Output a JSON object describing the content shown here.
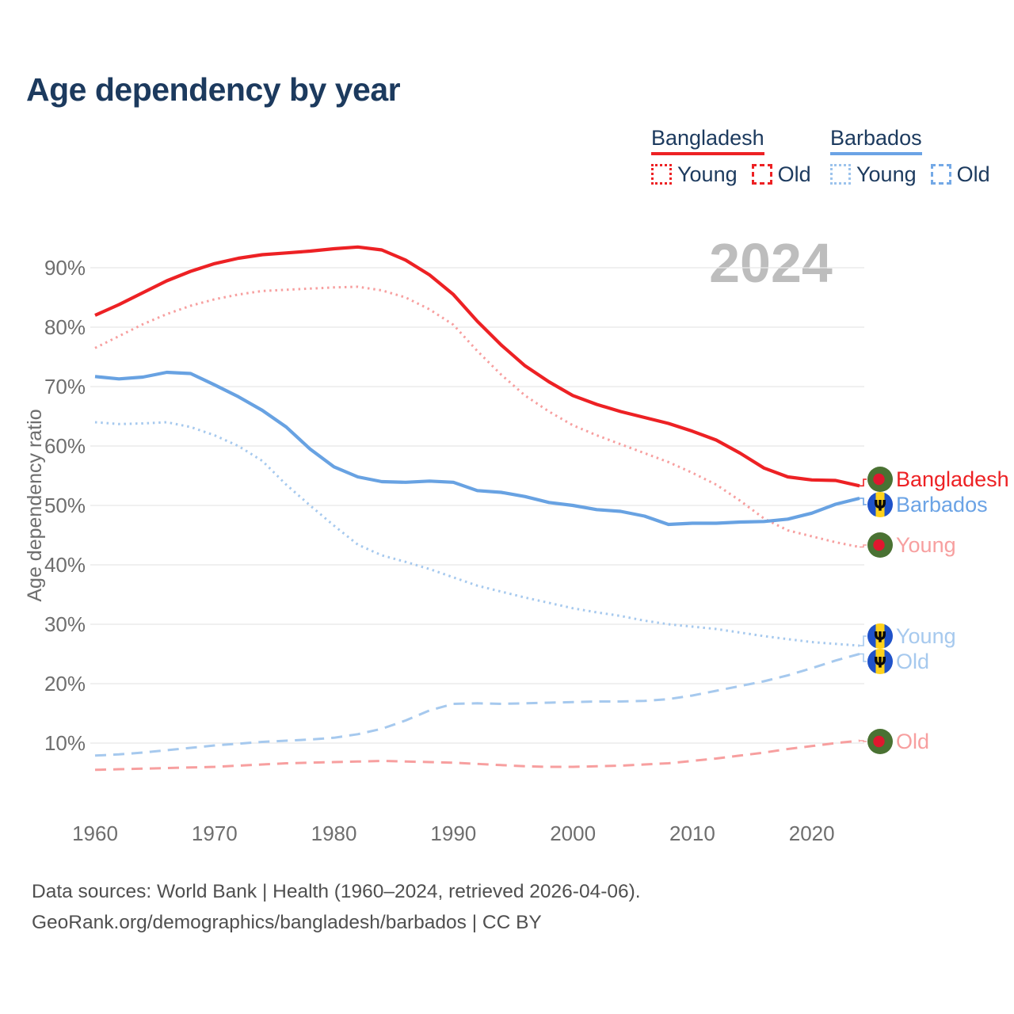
{
  "title": "Age dependency by year",
  "watermark": "2024",
  "icons": {
    "trident_glyph": "Ψ"
  },
  "legend": {
    "groups": [
      {
        "country": "Bangladesh",
        "color": "#ed2124",
        "items": [
          {
            "label": "Young",
            "style": "dotted",
            "color": "#ed2124"
          },
          {
            "label": "Old",
            "style": "dashed",
            "color": "#ed2124"
          }
        ]
      },
      {
        "country": "Barbados",
        "color": "#6ba3e5",
        "items": [
          {
            "label": "Young",
            "style": "dotted",
            "color": "#9cc3ec"
          },
          {
            "label": "Old",
            "style": "dashed",
            "color": "#74a9e6"
          }
        ]
      }
    ]
  },
  "chart_data": {
    "type": "line",
    "title": "Age dependency by year",
    "xlabel": "",
    "ylabel": "Age dependency ratio",
    "xlim": [
      1960,
      2024
    ],
    "ylim": [
      5,
      96
    ],
    "grid": true,
    "watermark": "2024",
    "x_ticks": [
      1960,
      1970,
      1980,
      1990,
      2000,
      2010,
      2020
    ],
    "y_ticks": [
      {
        "value": 90,
        "label": "90%"
      },
      {
        "value": 80,
        "label": "80%"
      },
      {
        "value": 70,
        "label": "70%"
      },
      {
        "value": 60,
        "label": "60%"
      },
      {
        "value": 50,
        "label": "50%"
      },
      {
        "value": 40,
        "label": "40%"
      },
      {
        "value": 30,
        "label": "30%"
      },
      {
        "value": 20,
        "label": "20%"
      },
      {
        "value": 10,
        "label": "10%"
      }
    ],
    "x": [
      1960,
      1962,
      1964,
      1966,
      1968,
      1970,
      1972,
      1974,
      1976,
      1978,
      1980,
      1982,
      1984,
      1986,
      1988,
      1990,
      1992,
      1994,
      1996,
      1998,
      2000,
      2002,
      2004,
      2006,
      2008,
      2010,
      2012,
      2014,
      2016,
      2018,
      2020,
      2022,
      2024
    ],
    "series": [
      {
        "id": "bangladesh-total",
        "name": "Bangladesh (total)",
        "country": "Bangladesh",
        "component": "total",
        "style": "solid",
        "color": "#ed2124",
        "values": [
          82,
          83.8,
          85.8,
          87.8,
          89.4,
          90.7,
          91.6,
          92.2,
          92.5,
          92.8,
          93.2,
          93.5,
          93,
          91.3,
          88.8,
          85.5,
          81,
          77,
          73.5,
          70.8,
          68.5,
          67,
          65.8,
          64.8,
          63.8,
          62.5,
          61,
          58.8,
          56.3,
          54.8,
          54.3,
          54.2,
          53.3
        ]
      },
      {
        "id": "bangladesh-young",
        "name": "Bangladesh (young)",
        "country": "Bangladesh",
        "component": "young",
        "style": "dotted",
        "color": "#f79f9f",
        "values": [
          76.5,
          78.5,
          80.5,
          82.2,
          83.6,
          84.7,
          85.5,
          86.1,
          86.3,
          86.5,
          86.7,
          86.8,
          86.2,
          85,
          83,
          80.4,
          76,
          72,
          68.5,
          65.8,
          63.5,
          61.8,
          60.3,
          58.8,
          57.3,
          55.5,
          53.5,
          50.8,
          47.8,
          45.8,
          44.8,
          43.8,
          43
        ]
      },
      {
        "id": "bangladesh-old",
        "name": "Bangladesh (old)",
        "country": "Bangladesh",
        "component": "old",
        "style": "dashed",
        "color": "#f79f9f",
        "values": [
          5.5,
          5.6,
          5.7,
          5.8,
          5.9,
          6,
          6.2,
          6.4,
          6.6,
          6.7,
          6.8,
          6.9,
          7,
          6.9,
          6.8,
          6.7,
          6.5,
          6.3,
          6.1,
          6,
          6,
          6.1,
          6.2,
          6.4,
          6.6,
          7,
          7.4,
          7.9,
          8.4,
          9,
          9.5,
          10,
          10.4
        ]
      },
      {
        "id": "barbados-total",
        "name": "Barbados (total)",
        "country": "Barbados",
        "component": "total",
        "style": "solid",
        "color": "#68a2e2",
        "values": [
          71.7,
          71.3,
          71.6,
          72.4,
          72.2,
          70.3,
          68.3,
          66,
          63.2,
          59.5,
          56.5,
          54.8,
          54,
          53.9,
          54.1,
          53.9,
          52.5,
          52.2,
          51.5,
          50.5,
          50,
          49.3,
          49,
          48.2,
          46.8,
          47,
          47,
          47.2,
          47.3,
          47.7,
          48.7,
          50.2,
          51.2
        ]
      },
      {
        "id": "barbados-young",
        "name": "Barbados (young)",
        "country": "Barbados",
        "component": "young",
        "style": "dotted",
        "color": "#a6c9ee",
        "values": [
          64,
          63.7,
          63.8,
          64,
          63.2,
          61.8,
          60,
          57.5,
          53.5,
          50,
          46.6,
          43.4,
          41.6,
          40.5,
          39.3,
          37.9,
          36.5,
          35.5,
          34.5,
          33.6,
          32.7,
          32,
          31.4,
          30.6,
          30,
          29.6,
          29.2,
          28.6,
          28,
          27.5,
          27,
          26.7,
          26.4
        ]
      },
      {
        "id": "barbados-old",
        "name": "Barbados (old)",
        "country": "Barbados",
        "component": "old",
        "style": "dashed",
        "color": "#a6c9ee",
        "values": [
          7.9,
          8.1,
          8.4,
          8.8,
          9.2,
          9.6,
          9.9,
          10.2,
          10.4,
          10.6,
          10.9,
          11.5,
          12.4,
          13.8,
          15.5,
          16.6,
          16.7,
          16.6,
          16.7,
          16.8,
          16.9,
          17,
          17,
          17.1,
          17.4,
          18,
          18.8,
          19.6,
          20.4,
          21.4,
          22.6,
          23.9,
          25
        ]
      }
    ],
    "end_labels": [
      {
        "text": "Bangladesh",
        "color": "#ed2124",
        "flag": "bd",
        "series": 0
      },
      {
        "text": "Barbados",
        "color": "#6ba3e5",
        "flag": "bb",
        "series": 3
      },
      {
        "text": "Young",
        "color": "#f79f9f",
        "flag": "bd",
        "series": 1
      },
      {
        "text": "Young",
        "color": "#a6c9ee",
        "flag": "bb",
        "series": 4
      },
      {
        "text": "Old",
        "color": "#a6c9ee",
        "flag": "bb",
        "series": 5
      },
      {
        "text": "Old",
        "color": "#f79f9f",
        "flag": "bd",
        "series": 2
      }
    ]
  },
  "footer": {
    "line1": "Data sources: World Bank | Health (1960–2024, retrieved 2026-04-06).",
    "line2": "GeoRank.org/demographics/bangladesh/barbados | CC BY"
  }
}
